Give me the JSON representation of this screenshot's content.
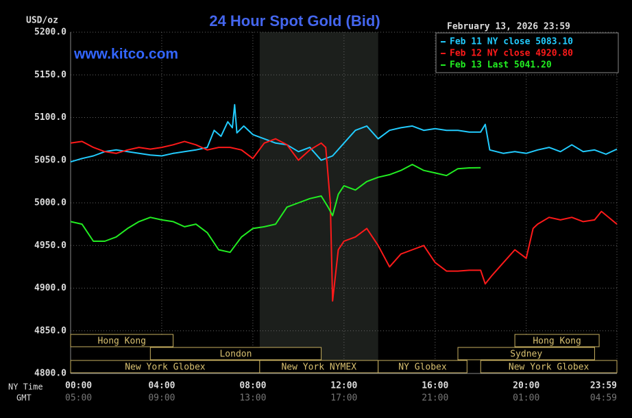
{
  "chart_data": {
    "type": "line",
    "title": "24 Hour Spot Gold (Bid)",
    "y_label": "USD/oz",
    "watermark": "www.kitco.com",
    "timestamp": "February 13, 2026 23:59",
    "x_label": "NY Time",
    "x2_label": "GMT",
    "xlim": [
      0,
      23.98
    ],
    "xticks": [
      {
        "value": 0,
        "label": "00:00"
      },
      {
        "value": 4,
        "label": "04:00"
      },
      {
        "value": 8,
        "label": "08:00"
      },
      {
        "value": 12,
        "label": "12:00"
      },
      {
        "value": 16,
        "label": "16:00"
      },
      {
        "value": 20,
        "label": "20:00"
      },
      {
        "value": 23.98,
        "label": "23:59"
      }
    ],
    "x2ticks": [
      "05:00",
      "09:00",
      "13:00",
      "17:00",
      "21:00",
      "01:00",
      "04:59"
    ],
    "ylim": [
      4800,
      5200
    ],
    "yticks": [
      {
        "value": 4800,
        "label": "4800.0"
      },
      {
        "value": 4850,
        "label": "4850.0"
      },
      {
        "value": 4900,
        "label": "4900.0"
      },
      {
        "value": 4950,
        "label": "4950.0"
      },
      {
        "value": 5000,
        "label": "5000.0"
      },
      {
        "value": 5050,
        "label": "5050.0"
      },
      {
        "value": 5100,
        "label": "5100.0"
      },
      {
        "value": 5150,
        "label": "5150.0"
      },
      {
        "value": 5200,
        "label": "5200.0"
      }
    ],
    "grid": true,
    "sessions": [
      {
        "label": "Hong Kong",
        "start": 0,
        "end": 4.5
      },
      {
        "label": "London",
        "start": 3.5,
        "end": 11
      },
      {
        "label": "New York Globex",
        "start": 0,
        "end": 8.3
      },
      {
        "label": "New York NYMEX",
        "start": 8.3,
        "end": 13.5
      },
      {
        "label": "NY Globex",
        "start": 13.5,
        "end": 17.4
      },
      {
        "label": "Hong Kong",
        "start": 19.5,
        "end": 23.2
      },
      {
        "label": "Sydney",
        "start": 17,
        "end": 23
      },
      {
        "label": "New York Globex",
        "start": 18,
        "end": 23.98
      }
    ],
    "series": [
      {
        "name": "Feb 11 NY close 5083.10",
        "color": "#22ccff",
        "x": [
          0,
          0.5,
          1,
          1.5,
          2,
          2.5,
          3,
          3.5,
          4,
          4.5,
          5,
          5.5,
          6,
          6.3,
          6.6,
          6.9,
          7.1,
          7.2,
          7.3,
          7.6,
          8,
          8.5,
          9,
          9.5,
          10,
          10.5,
          11,
          11.5,
          12,
          12.5,
          13,
          13.5,
          14,
          14.5,
          15,
          15.5,
          16,
          16.5,
          17,
          17.5,
          18,
          18.2,
          18.4,
          19,
          19.5,
          20,
          20.5,
          21,
          21.5,
          22,
          22.5,
          23,
          23.5,
          23.98
        ],
        "values": [
          5048,
          5052,
          5055,
          5060,
          5062,
          5060,
          5058,
          5056,
          5055,
          5058,
          5060,
          5062,
          5065,
          5085,
          5078,
          5095,
          5088,
          5115,
          5082,
          5090,
          5080,
          5075,
          5070,
          5068,
          5060,
          5065,
          5050,
          5055,
          5070,
          5085,
          5090,
          5075,
          5085,
          5088,
          5090,
          5085,
          5087,
          5085,
          5085,
          5083,
          5083,
          5092,
          5062,
          5058,
          5060,
          5058,
          5062,
          5065,
          5060,
          5068,
          5060,
          5062,
          5057,
          5063
        ]
      },
      {
        "name": "Feb 12 NY close 4920.80",
        "color": "#ff1a1a",
        "x": [
          0,
          0.5,
          1,
          1.5,
          2,
          2.5,
          3,
          3.5,
          4,
          4.5,
          5,
          5.5,
          6,
          6.5,
          7,
          7.5,
          8,
          8.5,
          9,
          9.5,
          10,
          10.5,
          11,
          11.2,
          11.4,
          11.5,
          11.75,
          12,
          12.5,
          13,
          13.5,
          14,
          14.5,
          15,
          15.5,
          16,
          16.5,
          17,
          17.5,
          18,
          18.2,
          18.5,
          19,
          19.5,
          20,
          20.3,
          20.5,
          21,
          21.5,
          22,
          22.5,
          23,
          23.3,
          23.98
        ],
        "values": [
          5070,
          5072,
          5065,
          5060,
          5058,
          5062,
          5065,
          5063,
          5065,
          5068,
          5072,
          5068,
          5062,
          5065,
          5065,
          5062,
          5052,
          5070,
          5075,
          5068,
          5050,
          5062,
          5070,
          5065,
          5000,
          4885,
          4945,
          4955,
          4960,
          4970,
          4950,
          4925,
          4940,
          4945,
          4950,
          4930,
          4920,
          4920,
          4921,
          4921,
          4905,
          4915,
          4930,
          4945,
          4935,
          4970,
          4975,
          4983,
          4980,
          4983,
          4978,
          4980,
          4990,
          4975
        ]
      },
      {
        "name": "Feb 13 Last 5041.20",
        "color": "#22ee22",
        "x": [
          0,
          0.5,
          1,
          1.5,
          2,
          2.5,
          3,
          3.5,
          4,
          4.5,
          5,
          5.5,
          6,
          6.5,
          7,
          7.5,
          8,
          8.5,
          9,
          9.5,
          10,
          10.5,
          11,
          11.3,
          11.5,
          11.75,
          12,
          12.5,
          13,
          13.5,
          14,
          14.5,
          15,
          15.5,
          16,
          16.5,
          17,
          17.5,
          18
        ],
        "values": [
          4978,
          4975,
          4955,
          4955,
          4960,
          4970,
          4978,
          4983,
          4980,
          4978,
          4972,
          4975,
          4965,
          4945,
          4942,
          4960,
          4970,
          4972,
          4975,
          4995,
          5000,
          5005,
          5008,
          4995,
          4985,
          5010,
          5020,
          5015,
          5025,
          5030,
          5033,
          5038,
          5045,
          5038,
          5035,
          5032,
          5040,
          5041,
          5041.2
        ]
      }
    ]
  }
}
